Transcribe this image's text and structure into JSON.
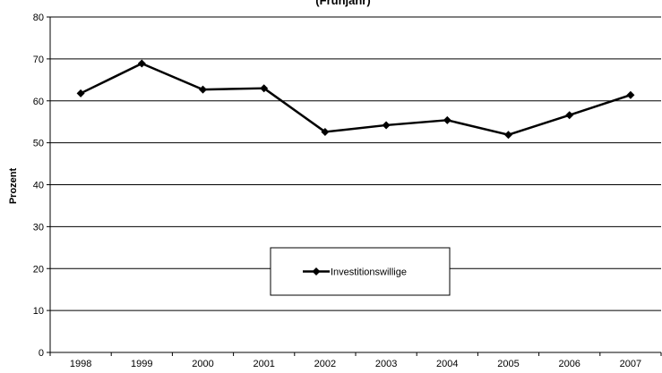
{
  "chart_data": {
    "type": "line",
    "title": "(Frühjahr)",
    "xlabel": "",
    "ylabel": "Prozent",
    "categories": [
      "1998",
      "1999",
      "2000",
      "2001",
      "2002",
      "2003",
      "2004",
      "2005",
      "2006",
      "2007"
    ],
    "series": [
      {
        "name": "Investitionswillige",
        "values": [
          61.8,
          68.9,
          62.7,
          63.0,
          52.6,
          54.2,
          55.4,
          51.9,
          56.6,
          61.4
        ],
        "color": "#000000",
        "marker": "diamond"
      }
    ],
    "ylim": [
      0,
      80
    ],
    "yticks": [
      0,
      10,
      20,
      30,
      40,
      50,
      60,
      70,
      80
    ],
    "grid": true,
    "legend_position": "bottom-center"
  }
}
